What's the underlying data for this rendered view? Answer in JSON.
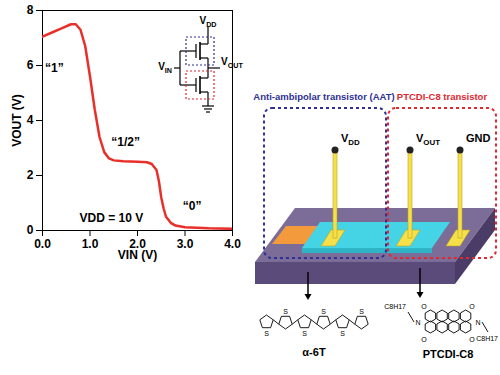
{
  "chart_data": {
    "type": "line",
    "x_label": "VIN (V)",
    "y_label": "VOUT (V)",
    "xlim": [
      0,
      4
    ],
    "ylim": [
      0,
      8
    ],
    "xticks": [
      0,
      1,
      2,
      3,
      4
    ],
    "yticks": [
      0,
      2,
      4,
      6,
      8
    ],
    "grid": false,
    "x": [
      0,
      0.2,
      0.4,
      0.6,
      0.7,
      0.8,
      0.9,
      1.0,
      1.1,
      1.2,
      1.3,
      1.4,
      1.5,
      1.7,
      2.0,
      2.2,
      2.3,
      2.4,
      2.45,
      2.5,
      2.55,
      2.6,
      2.7,
      2.8,
      3.0,
      3.5,
      4.0
    ],
    "values": [
      7.05,
      7.2,
      7.35,
      7.5,
      7.5,
      7.3,
      6.7,
      5.6,
      4.4,
      3.4,
      2.85,
      2.62,
      2.55,
      2.52,
      2.5,
      2.48,
      2.42,
      2.2,
      1.8,
      1.2,
      0.8,
      0.5,
      0.28,
      0.18,
      0.12,
      0.08,
      0.06
    ],
    "color": "#e8302a",
    "annotations": [
      {
        "text": "“1”",
        "x": 0.25,
        "y": 5.9
      },
      {
        "text": "“1/2”",
        "x": 1.75,
        "y": 3.2
      },
      {
        "text": "“0”",
        "x": 3.15,
        "y": 0.9
      },
      {
        "text": "VDD = 10 V",
        "x": 1.45,
        "y": 0.45
      }
    ]
  },
  "inset_circuit": {
    "supply": "VDD",
    "input": "VIN",
    "output": "VOUT"
  },
  "device": {
    "title_left": "Anti-ambipolar transistor (AAT)",
    "title_right": "PTCDI-C8 transistor",
    "electrodes": [
      "VDD",
      "VOUT",
      "GND"
    ],
    "left_color": "#2e3192",
    "right_color": "#e0282e"
  },
  "molecules": {
    "a6t": {
      "label": "α-6T",
      "atoms": [
        "S",
        "S",
        "S",
        "S",
        "S",
        "S"
      ]
    },
    "ptcdi": {
      "label": "PTCDI-C8",
      "oxygens": [
        "O",
        "O",
        "O",
        "O"
      ],
      "nitrogens": [
        "N",
        "N"
      ],
      "side_chains": [
        "C8H17",
        "C8H17"
      ]
    }
  }
}
